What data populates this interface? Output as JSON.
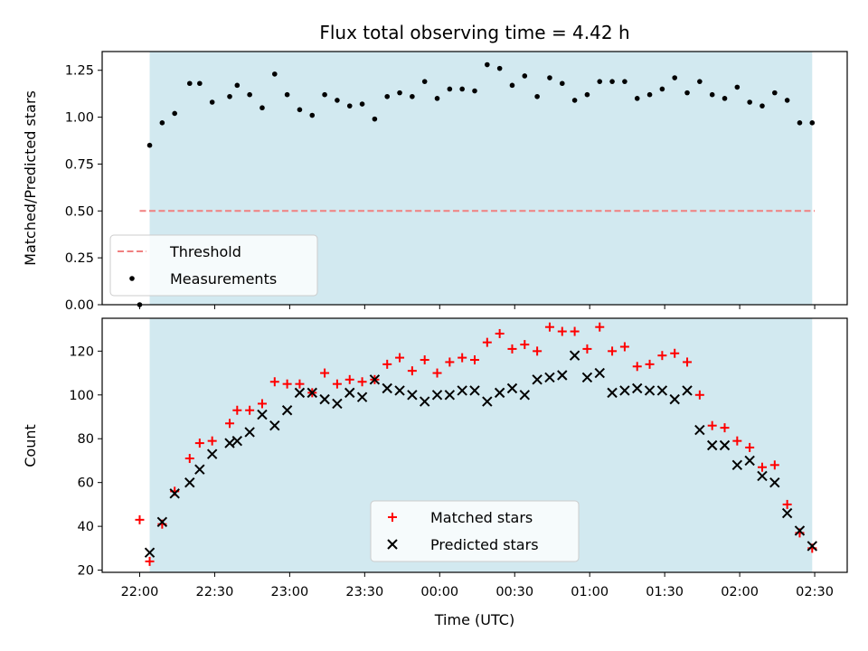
{
  "chart_data": [
    {
      "type": "scatter",
      "title": "Flux total observing time = 4.42 h",
      "xlabel": "",
      "ylabel": "Matched/Predicted stars",
      "ylim": [
        0,
        1.35
      ],
      "xlim_minutes_from_2200": [
        -15,
        283
      ],
      "yticks": [
        "0.00",
        "0.25",
        "0.50",
        "0.75",
        "1.00",
        "1.25"
      ],
      "ytick_values": [
        0,
        0.25,
        0.5,
        0.75,
        1.0,
        1.25
      ],
      "observing_window": [
        "22:04",
        "02:29"
      ],
      "legend_position": "lower-left",
      "series": [
        {
          "name": "Threshold",
          "style": "dashed-line",
          "color": "#f08080",
          "x": [
            "22:00",
            "02:30"
          ],
          "y": [
            0.5,
            0.5
          ]
        },
        {
          "name": "Measurements",
          "style": "dot",
          "color": "#000000",
          "x": [
            "22:00",
            "22:04",
            "22:09",
            "22:14",
            "22:20",
            "22:24",
            "22:29",
            "22:36",
            "22:39",
            "22:44",
            "22:49",
            "22:54",
            "22:59",
            "23:04",
            "23:09",
            "23:14",
            "23:19",
            "23:24",
            "23:29",
            "23:34",
            "23:39",
            "23:44",
            "23:49",
            "23:54",
            "23:59",
            "00:04",
            "00:09",
            "00:14",
            "00:19",
            "00:24",
            "00:29",
            "00:34",
            "00:39",
            "00:44",
            "00:49",
            "00:54",
            "00:59",
            "01:04",
            "01:09",
            "01:14",
            "01:19",
            "01:24",
            "01:29",
            "01:34",
            "01:39",
            "01:44",
            "01:49",
            "01:54",
            "01:59",
            "02:04",
            "02:09",
            "02:14",
            "02:19",
            "02:24",
            "02:29"
          ],
          "y": [
            0.0,
            0.85,
            0.97,
            1.02,
            1.18,
            1.18,
            1.08,
            1.11,
            1.17,
            1.12,
            1.05,
            1.23,
            1.12,
            1.04,
            1.01,
            1.12,
            1.09,
            1.06,
            1.07,
            0.99,
            1.11,
            1.13,
            1.11,
            1.19,
            1.1,
            1.15,
            1.15,
            1.14,
            1.28,
            1.26,
            1.17,
            1.22,
            1.11,
            1.21,
            1.18,
            1.09,
            1.12,
            1.19,
            1.19,
            1.19,
            1.1,
            1.12,
            1.15,
            1.21,
            1.13,
            1.19,
            1.12,
            1.1,
            1.16,
            1.08,
            1.06,
            1.13,
            1.09,
            0.97,
            0.97
          ]
        }
      ]
    },
    {
      "type": "scatter",
      "title": "",
      "xlabel": "Time (UTC)",
      "ylabel": "Count",
      "ylim": [
        19,
        135
      ],
      "xlim_minutes_from_2200": [
        -15,
        283
      ],
      "yticks": [
        "20",
        "40",
        "60",
        "80",
        "100",
        "120"
      ],
      "ytick_values": [
        20,
        40,
        60,
        80,
        100,
        120
      ],
      "xticks": [
        "22:00",
        "22:30",
        "23:00",
        "23:30",
        "00:00",
        "00:30",
        "01:00",
        "01:30",
        "02:00",
        "02:30"
      ],
      "xtick_values": [
        "22:00",
        "22:30",
        "23:00",
        "23:30",
        "00:00",
        "00:30",
        "01:00",
        "01:30",
        "02:00",
        "02:30"
      ],
      "observing_window": [
        "22:04",
        "02:29"
      ],
      "legend_position": "lower-center",
      "series": [
        {
          "name": "Matched stars",
          "style": "plus",
          "color": "#ff0000",
          "x": [
            "22:00",
            "22:04",
            "22:09",
            "22:14",
            "22:20",
            "22:24",
            "22:29",
            "22:36",
            "22:39",
            "22:44",
            "22:49",
            "22:54",
            "22:59",
            "23:04",
            "23:09",
            "23:14",
            "23:19",
            "23:24",
            "23:29",
            "23:34",
            "23:39",
            "23:44",
            "23:49",
            "23:54",
            "23:59",
            "00:04",
            "00:09",
            "00:14",
            "00:19",
            "00:24",
            "00:29",
            "00:34",
            "00:39",
            "00:44",
            "00:49",
            "00:54",
            "00:59",
            "01:04",
            "01:09",
            "01:14",
            "01:19",
            "01:24",
            "01:29",
            "01:34",
            "01:39",
            "01:44",
            "01:49",
            "01:54",
            "01:59",
            "02:04",
            "02:09",
            "02:14",
            "02:19",
            "02:24",
            "02:29"
          ],
          "y": [
            43,
            24,
            41,
            56,
            71,
            78,
            79,
            87,
            93,
            93,
            96,
            106,
            105,
            105,
            101,
            110,
            105,
            107,
            106,
            107,
            114,
            117,
            111,
            116,
            110,
            115,
            117,
            116,
            124,
            128,
            121,
            123,
            120,
            131,
            129,
            129,
            121,
            131,
            120,
            122,
            113,
            114,
            118,
            119,
            115,
            100,
            86,
            85,
            79,
            76,
            67,
            68,
            50,
            37,
            30
          ]
        },
        {
          "name": "Predicted stars",
          "style": "x",
          "color": "#000000",
          "x": [
            "22:04",
            "22:09",
            "22:14",
            "22:20",
            "22:24",
            "22:29",
            "22:36",
            "22:39",
            "22:44",
            "22:49",
            "22:54",
            "22:59",
            "23:04",
            "23:09",
            "23:14",
            "23:19",
            "23:24",
            "23:29",
            "23:34",
            "23:39",
            "23:44",
            "23:49",
            "23:54",
            "23:59",
            "00:04",
            "00:09",
            "00:14",
            "00:19",
            "00:24",
            "00:29",
            "00:34",
            "00:39",
            "00:44",
            "00:49",
            "00:54",
            "00:59",
            "01:04",
            "01:09",
            "01:14",
            "01:19",
            "01:24",
            "01:29",
            "01:34",
            "01:39",
            "01:44",
            "01:49",
            "01:54",
            "01:59",
            "02:04",
            "02:09",
            "02:14",
            "02:19",
            "02:24",
            "02:29"
          ],
          "y": [
            28,
            42,
            55,
            60,
            66,
            73,
            78,
            79,
            83,
            91,
            86,
            93,
            101,
            101,
            98,
            96,
            101,
            99,
            107,
            103,
            102,
            100,
            97,
            100,
            100,
            102,
            102,
            97,
            101,
            103,
            100,
            107,
            108,
            109,
            118,
            108,
            110,
            101,
            102,
            103,
            102,
            102,
            98,
            102,
            84,
            77,
            77,
            68,
            70,
            63,
            60,
            46,
            38,
            31
          ]
        }
      ]
    }
  ],
  "colors": {
    "window_fill": "#d2e9f0",
    "threshold": "#f08080",
    "matched": "#ff0000",
    "predicted": "#000000",
    "measurement": "#000000"
  }
}
